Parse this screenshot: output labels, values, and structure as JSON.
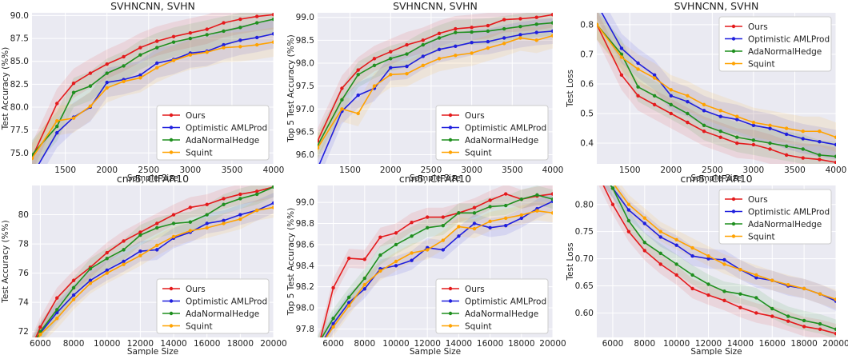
{
  "colors": {
    "Ours": "#e41a1c",
    "Optimistic AMLProd": "#1f1fdd",
    "AdaNormalHedge": "#1f8f1f",
    "Squint": "#ffa200"
  },
  "legend": [
    "Ours",
    "Optimistic AMLProd",
    "AdaNormalHedge",
    "Squint"
  ],
  "chart_data": [
    {
      "type": "line",
      "title": "SVHNCNN, SVHN",
      "xlabel": "Sample Size",
      "ylabel": "Test Accuracy (%%)",
      "xlim": [
        1100,
        4000
      ],
      "ylim": [
        73.8,
        90.3
      ],
      "xticks": [
        1500,
        2000,
        2500,
        3000,
        3500,
        4000
      ],
      "yticks": [
        75.0,
        77.5,
        80.0,
        82.5,
        85.0,
        87.5,
        90.0
      ],
      "ytick_labels": [
        "75.0",
        "77.5",
        "80.0",
        "82.5",
        "85.0",
        "87.5",
        "90.0"
      ],
      "legend_position": "lower-right",
      "band": 1.6,
      "x": [
        1100,
        1400,
        1600,
        1800,
        2000,
        2200,
        2400,
        2600,
        2800,
        3000,
        3200,
        3400,
        3600,
        3800,
        4000
      ],
      "series": [
        {
          "name": "Ours",
          "values": [
            74.5,
            80.4,
            82.6,
            83.7,
            84.7,
            85.5,
            86.5,
            87.2,
            87.7,
            88.1,
            88.5,
            89.2,
            89.6,
            89.9,
            90.1
          ]
        },
        {
          "name": "Optimistic AMLProd",
          "values": [
            72.5,
            77.2,
            78.9,
            80.0,
            82.7,
            83.0,
            83.5,
            84.8,
            85.2,
            85.9,
            86.1,
            86.8,
            87.3,
            87.6,
            88.0
          ]
        },
        {
          "name": "AdaNormalHedge",
          "values": [
            74.8,
            77.9,
            81.6,
            82.3,
            83.7,
            84.5,
            85.7,
            86.5,
            87.1,
            87.5,
            87.9,
            88.3,
            88.7,
            89.2,
            89.6
          ]
        },
        {
          "name": "Squint",
          "values": [
            74.4,
            78.5,
            78.8,
            80.1,
            82.1,
            82.8,
            83.2,
            84.3,
            85.1,
            85.7,
            86.0,
            86.5,
            86.6,
            86.8,
            87.1
          ]
        }
      ]
    },
    {
      "type": "line",
      "title": "SVHNCNN, SVHN",
      "xlabel": "Sample Size",
      "ylabel": "Top 5 Test Accuracy (%%)",
      "xlim": [
        1100,
        4000
      ],
      "ylim": [
        95.8,
        99.1
      ],
      "xticks": [
        1500,
        2000,
        2500,
        3000,
        3500,
        4000
      ],
      "yticks": [
        96.0,
        96.5,
        97.0,
        97.5,
        98.0,
        98.5,
        99.0
      ],
      "ytick_labels": [
        "96.0",
        "96.5",
        "97.0",
        "97.5",
        "98.0",
        "98.5",
        "99.0"
      ],
      "legend_position": "lower-right",
      "band": 0.28,
      "x": [
        1100,
        1400,
        1600,
        1800,
        2000,
        2200,
        2400,
        2600,
        2800,
        3000,
        3200,
        3400,
        3600,
        3800,
        4000
      ],
      "series": [
        {
          "name": "Ours",
          "values": [
            96.3,
            97.45,
            97.85,
            98.1,
            98.25,
            98.4,
            98.5,
            98.65,
            98.75,
            98.78,
            98.82,
            98.95,
            98.97,
            99.0,
            99.06
          ]
        },
        {
          "name": "Optimistic AMLProd",
          "values": [
            95.7,
            96.95,
            97.3,
            97.45,
            97.9,
            97.93,
            98.15,
            98.3,
            98.37,
            98.45,
            98.47,
            98.55,
            98.62,
            98.67,
            98.7
          ]
        },
        {
          "name": "AdaNormalHedge",
          "values": [
            96.2,
            97.2,
            97.75,
            97.95,
            98.1,
            98.2,
            98.4,
            98.55,
            98.67,
            98.68,
            98.7,
            98.75,
            98.8,
            98.85,
            98.88
          ]
        },
        {
          "name": "Squint",
          "values": [
            96.15,
            97.0,
            96.9,
            97.5,
            97.75,
            97.77,
            97.95,
            98.1,
            98.17,
            98.22,
            98.33,
            98.43,
            98.55,
            98.5,
            98.6
          ]
        }
      ]
    },
    {
      "type": "line",
      "title": "SVHNCNN, SVHN",
      "xlabel": "Sample Size",
      "ylabel": "Test Loss",
      "xlim": [
        1100,
        4000
      ],
      "ylim": [
        0.33,
        0.84
      ],
      "xticks": [
        1500,
        2000,
        2500,
        3000,
        3500,
        4000
      ],
      "yticks": [
        0.4,
        0.5,
        0.6,
        0.7,
        0.8
      ],
      "ytick_labels": [
        "0.4",
        "0.5",
        "0.6",
        "0.7",
        "0.8"
      ],
      "legend_position": "top-right",
      "band": 0.05,
      "x": [
        1100,
        1400,
        1600,
        1800,
        2000,
        2200,
        2400,
        2600,
        2800,
        3000,
        3200,
        3400,
        3600,
        3800,
        4000
      ],
      "series": [
        {
          "name": "Ours",
          "values": [
            0.8,
            0.63,
            0.56,
            0.53,
            0.5,
            0.47,
            0.44,
            0.42,
            0.4,
            0.395,
            0.38,
            0.36,
            0.35,
            0.345,
            0.335
          ]
        },
        {
          "name": "Optimistic AMLProd",
          "values": [
            0.87,
            0.72,
            0.67,
            0.63,
            0.56,
            0.54,
            0.51,
            0.49,
            0.48,
            0.46,
            0.45,
            0.43,
            0.415,
            0.405,
            0.395
          ]
        },
        {
          "name": "AdaNormalHedge",
          "values": [
            0.8,
            0.7,
            0.59,
            0.56,
            0.53,
            0.5,
            0.46,
            0.44,
            0.42,
            0.41,
            0.4,
            0.39,
            0.38,
            0.36,
            0.355
          ]
        },
        {
          "name": "Squint",
          "values": [
            0.8,
            0.69,
            0.65,
            0.62,
            0.58,
            0.56,
            0.53,
            0.51,
            0.49,
            0.47,
            0.46,
            0.45,
            0.44,
            0.44,
            0.42
          ]
        }
      ]
    },
    {
      "type": "line",
      "title": "cnn5, CIFAR10",
      "xlabel": "Sample Size",
      "ylabel": "Test Accuracy (%%)",
      "xlim": [
        5500,
        20000
      ],
      "ylim": [
        71.6,
        82.0
      ],
      "xticks": [
        6000,
        8000,
        10000,
        12000,
        14000,
        16000,
        18000,
        20000
      ],
      "yticks": [
        72,
        74,
        76,
        78,
        80
      ],
      "ytick_labels": [
        "72",
        "74",
        "76",
        "78",
        "80"
      ],
      "legend_position": "lower-right",
      "band": 0.7,
      "x": [
        5500,
        6000,
        7000,
        8000,
        9000,
        10000,
        11000,
        12000,
        13000,
        14000,
        15000,
        16000,
        17000,
        18000,
        19000,
        20000
      ],
      "series": [
        {
          "name": "Ours",
          "values": [
            71.0,
            72.3,
            74.3,
            75.5,
            76.4,
            77.4,
            78.2,
            78.8,
            79.4,
            80.0,
            80.5,
            80.7,
            81.1,
            81.4,
            81.6,
            81.9
          ]
        },
        {
          "name": "Optimistic AMLProd",
          "values": [
            70.8,
            71.9,
            73.3,
            74.5,
            75.5,
            76.2,
            76.8,
            77.5,
            77.6,
            78.4,
            78.8,
            79.4,
            79.6,
            80.0,
            80.3,
            80.8
          ]
        },
        {
          "name": "AdaNormalHedge",
          "values": [
            70.9,
            72.0,
            73.5,
            75.0,
            76.3,
            77.0,
            77.6,
            78.6,
            79.1,
            79.4,
            79.5,
            80.0,
            80.7,
            81.1,
            81.4,
            81.9
          ]
        },
        {
          "name": "Squint",
          "values": [
            70.7,
            71.8,
            72.9,
            74.2,
            75.3,
            76.0,
            76.6,
            77.2,
            77.9,
            78.5,
            78.9,
            79.1,
            79.4,
            79.7,
            80.3,
            80.5
          ]
        }
      ]
    },
    {
      "type": "line",
      "title": "cnn5, CIFAR10",
      "xlabel": "Sample Size",
      "ylabel": "Top 5 Test Accuracy (%%)",
      "xlim": [
        5000,
        20000
      ],
      "ylim": [
        97.72,
        99.16
      ],
      "xticks": [
        6000,
        8000,
        10000,
        12000,
        14000,
        16000,
        18000,
        20000
      ],
      "yticks": [
        97.8,
        98.0,
        98.2,
        98.4,
        98.6,
        98.8,
        99.0
      ],
      "ytick_labels": [
        "97.8",
        "98.0",
        "98.2",
        "98.4",
        "98.6",
        "98.8",
        "99.0"
      ],
      "legend_position": "lower-right",
      "band": 0.09,
      "x": [
        5000,
        6000,
        7000,
        8000,
        9000,
        10000,
        11000,
        12000,
        13000,
        14000,
        15000,
        16000,
        17000,
        18000,
        19000,
        20000
      ],
      "series": [
        {
          "name": "Ours",
          "values": [
            97.6,
            98.19,
            98.47,
            98.46,
            98.67,
            98.71,
            98.81,
            98.86,
            98.86,
            98.9,
            98.95,
            99.02,
            99.08,
            99.03,
            99.06,
            99.08
          ]
        },
        {
          "name": "Optimistic AMLProd",
          "values": [
            97.6,
            97.85,
            98.05,
            98.18,
            98.37,
            98.4,
            98.45,
            98.57,
            98.55,
            98.68,
            98.8,
            98.76,
            98.78,
            98.85,
            98.94,
            99.01
          ]
        },
        {
          "name": "AdaNormalHedge",
          "values": [
            97.65,
            97.9,
            98.1,
            98.28,
            98.5,
            98.6,
            98.68,
            98.76,
            98.78,
            98.9,
            98.9,
            98.96,
            98.97,
            99.03,
            99.07,
            99.03
          ]
        },
        {
          "name": "Squint",
          "values": [
            97.6,
            97.82,
            98.02,
            98.22,
            98.35,
            98.44,
            98.52,
            98.55,
            98.64,
            98.77,
            98.75,
            98.82,
            98.85,
            98.88,
            98.92,
            98.9
          ]
        }
      ]
    },
    {
      "type": "line",
      "title": "cnn5, CIFAR10",
      "xlabel": "Sample Size",
      "ylabel": "Test Loss",
      "xlim": [
        5000,
        20000
      ],
      "ylim": [
        0.555,
        0.835
      ],
      "xticks": [
        6000,
        8000,
        10000,
        12000,
        14000,
        16000,
        18000,
        20000
      ],
      "yticks": [
        0.6,
        0.65,
        0.7,
        0.75,
        0.8
      ],
      "ytick_labels": [
        "0.60",
        "0.65",
        "0.70",
        "0.75",
        "0.80"
      ],
      "legend_position": "top-right",
      "band": 0.018,
      "x": [
        5000,
        6000,
        7000,
        8000,
        9000,
        10000,
        11000,
        12000,
        13000,
        14000,
        15000,
        16000,
        17000,
        18000,
        19000,
        20000
      ],
      "series": [
        {
          "name": "Ours",
          "values": [
            0.86,
            0.8,
            0.75,
            0.715,
            0.69,
            0.67,
            0.645,
            0.633,
            0.623,
            0.61,
            0.6,
            0.594,
            0.585,
            0.575,
            0.57,
            0.562
          ]
        },
        {
          "name": "Optimistic AMLProd",
          "values": [
            0.87,
            0.83,
            0.79,
            0.765,
            0.74,
            0.725,
            0.705,
            0.7,
            0.698,
            0.68,
            0.665,
            0.66,
            0.65,
            0.645,
            0.635,
            0.622
          ]
        },
        {
          "name": "AdaNormalHedge",
          "values": [
            0.87,
            0.83,
            0.77,
            0.73,
            0.71,
            0.69,
            0.67,
            0.653,
            0.64,
            0.635,
            0.628,
            0.608,
            0.594,
            0.586,
            0.58,
            0.57
          ]
        },
        {
          "name": "Squint",
          "values": [
            0.88,
            0.84,
            0.8,
            0.775,
            0.75,
            0.735,
            0.72,
            0.705,
            0.69,
            0.68,
            0.67,
            0.66,
            0.652,
            0.645,
            0.635,
            0.625
          ]
        }
      ]
    }
  ]
}
